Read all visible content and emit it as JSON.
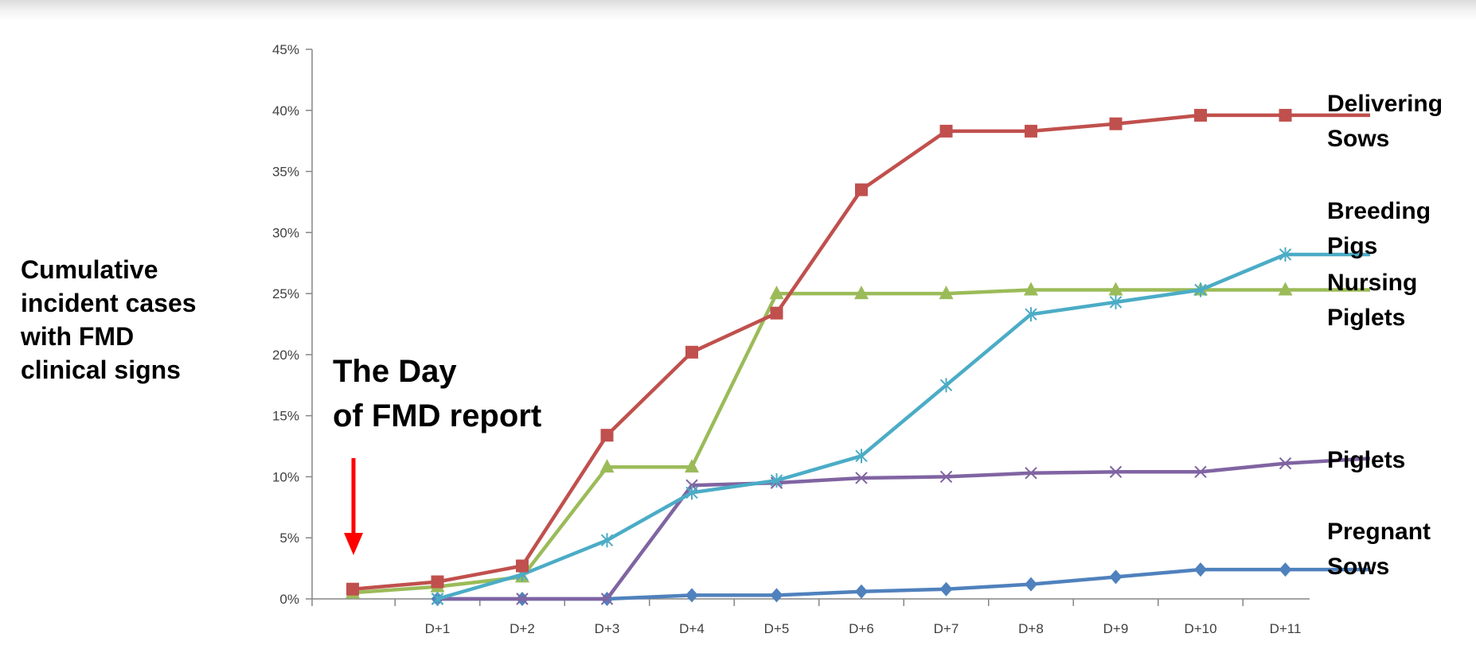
{
  "chart_data": {
    "type": "line",
    "title": "",
    "xlabel": "",
    "ylabel": [
      "Cumulative",
      "incident cases",
      "with FMD",
      "clinical signs"
    ],
    "categories": [
      "",
      "D+1",
      "D+2",
      "D+3",
      "D+4",
      "D+5",
      "D+6",
      "D+7",
      "D+8",
      "D+9",
      "D+10",
      "D+11",
      ""
    ],
    "y_ticks": [
      "0%",
      "5%",
      "10%",
      "15%",
      "20%",
      "25%",
      "30%",
      "35%",
      "40%",
      "45%"
    ],
    "ylim": [
      0,
      45
    ],
    "grid": false,
    "annotation": {
      "lines": [
        "The Day",
        "of FMD report"
      ],
      "arrow_color": "#ff0000"
    },
    "series": [
      {
        "name": "Delivering Sows",
        "label_lines": [
          "Delivering",
          "Sows"
        ],
        "color": "#c0504d",
        "marker": "square",
        "x": [
          0,
          1,
          2,
          3,
          4,
          5,
          6,
          7,
          8,
          9,
          10,
          11,
          12
        ],
        "values": [
          0.8,
          1.4,
          2.7,
          13.4,
          20.2,
          23.4,
          33.5,
          38.3,
          38.3,
          38.9,
          39.6,
          39.6,
          39.6
        ]
      },
      {
        "name": "Breeding Pigs",
        "label_lines": [
          "Breeding",
          "Pigs"
        ],
        "color": "#4bacc6",
        "marker": "star",
        "x": [
          1,
          2,
          3,
          4,
          5,
          6,
          7,
          8,
          9,
          10,
          11,
          12
        ],
        "values": [
          0,
          2.0,
          4.8,
          8.7,
          9.7,
          11.7,
          17.5,
          23.3,
          24.3,
          25.3,
          28.2,
          28.2
        ]
      },
      {
        "name": "Nursing Piglets",
        "label_lines": [
          "Nursing",
          "Piglets"
        ],
        "color": "#9bbb59",
        "marker": "triangle",
        "x": [
          0,
          1,
          2,
          3,
          4,
          5,
          6,
          7,
          8,
          9,
          10,
          11,
          12
        ],
        "values": [
          0.5,
          1.0,
          1.8,
          10.8,
          10.8,
          25.0,
          25.0,
          25.0,
          25.3,
          25.3,
          25.3,
          25.3,
          25.3
        ]
      },
      {
        "name": "Piglets",
        "label_lines": [
          "Piglets"
        ],
        "color": "#8064a2",
        "marker": "x",
        "x": [
          1,
          2,
          3,
          4,
          5,
          6,
          7,
          8,
          9,
          10,
          11,
          12
        ],
        "values": [
          0,
          0,
          0,
          9.3,
          9.5,
          9.9,
          10.0,
          10.3,
          10.4,
          10.4,
          11.1,
          11.5
        ]
      },
      {
        "name": "Pregnant Sows",
        "label_lines": [
          "Pregnant",
          "Sows"
        ],
        "color": "#4f81bd",
        "marker": "diamond",
        "x": [
          1,
          2,
          3,
          4,
          5,
          6,
          7,
          8,
          9,
          10,
          11,
          12
        ],
        "values": [
          0,
          0,
          0,
          0.3,
          0.3,
          0.6,
          0.8,
          1.2,
          1.8,
          2.4,
          2.4,
          2.4
        ]
      }
    ]
  }
}
